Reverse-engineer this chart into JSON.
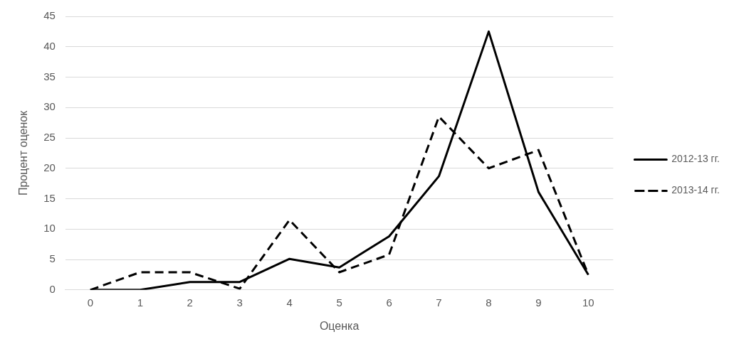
{
  "chart_data": {
    "type": "line",
    "xlabel": "Оценка",
    "ylabel": "Процент оценок",
    "categories": [
      "0",
      "1",
      "2",
      "3",
      "4",
      "5",
      "6",
      "7",
      "8",
      "9",
      "10"
    ],
    "series": [
      {
        "name": "2012-13 гг.",
        "color": "#000000",
        "line_style": "solid",
        "values": [
          0,
          0,
          1.3,
          1.3,
          5.1,
          3.7,
          8.8,
          18.7,
          42.5,
          16.1,
          2.5
        ]
      },
      {
        "name": "2013-14 гг.",
        "color": "#000000",
        "line_style": "dashed",
        "values": [
          0,
          2.9,
          2.9,
          0.2,
          11.5,
          2.9,
          5.8,
          28.5,
          20,
          23,
          2.5
        ]
      }
    ],
    "ylim": [
      0,
      45
    ],
    "yticks": [
      0,
      5,
      10,
      15,
      20,
      25,
      30,
      35,
      40,
      45
    ],
    "grid": "y",
    "legend": "right",
    "marker": "none"
  }
}
